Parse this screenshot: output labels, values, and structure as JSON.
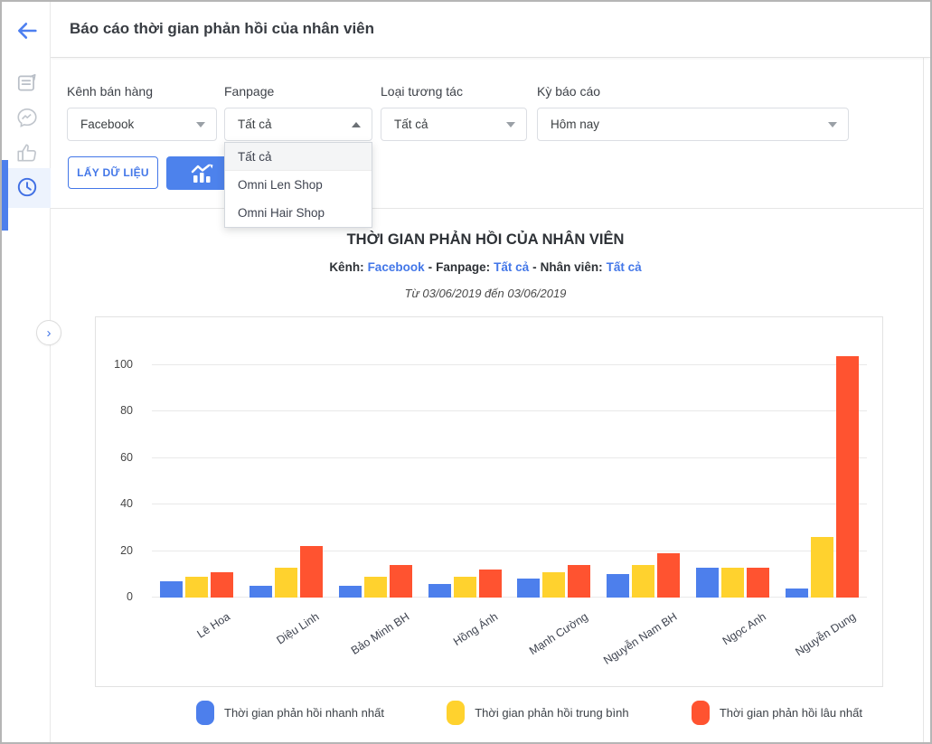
{
  "header": {
    "title": "Báo cáo thời gian phản hồi của nhân viên"
  },
  "sidebar": {
    "items": [
      {
        "id": "notes",
        "icon": "note-icon",
        "active": false
      },
      {
        "id": "messenger",
        "icon": "messenger-icon",
        "active": false
      },
      {
        "id": "reactions",
        "icon": "thumbs-up-icon",
        "active": false
      },
      {
        "id": "response-time",
        "icon": "clock-icon",
        "active": true
      }
    ]
  },
  "filters": {
    "channel": {
      "label": "Kênh bán hàng",
      "value": "Facebook"
    },
    "fanpage": {
      "label": "Fanpage",
      "value": "Tất cả",
      "open": true,
      "options": [
        "Tất cả",
        "Omni Len Shop",
        "Omni Hair Shop"
      ],
      "highlighted_option": "Tất cả"
    },
    "interaction": {
      "label": "Loại tương tác",
      "value": "Tất cả"
    },
    "period": {
      "label": "Kỳ báo cáo",
      "value": "Hôm nay"
    },
    "get_data_button": "LẤY DỮ LIỆU"
  },
  "report": {
    "title": "THỜI GIAN PHẢN HỒI CỦA NHÂN VIÊN",
    "subtitle": {
      "channel_label": "Kênh:",
      "channel_value": "Facebook",
      "sep1": "-",
      "fanpage_label": "Fanpage:",
      "fanpage_value": "Tất cả",
      "sep2": "-",
      "staff_label": "Nhân viên:",
      "staff_value": "Tất cả"
    },
    "date_range": "Từ 03/06/2019 đến 03/06/2019"
  },
  "chart_data": {
    "type": "bar",
    "categories": [
      "Lê Hoa",
      "Diệu Linh",
      "Bảo Minh BH",
      "Hồng Ánh",
      "Mạnh Cường",
      "Nguyễn Nam BH",
      "Ngọc Anh",
      "Nguyễn Dung"
    ],
    "series": [
      {
        "name": "Thời gian phản hồi nhanh nhất",
        "color": "#4D7FEC",
        "values": [
          7,
          5,
          5,
          6,
          8,
          10,
          13,
          4
        ]
      },
      {
        "name": "Thời gian phản hồi trung bình",
        "color": "#FFD22E",
        "values": [
          9,
          13,
          9,
          9,
          11,
          14,
          13,
          26
        ]
      },
      {
        "name": "Thời gian phản hồi lâu nhất",
        "color": "#FF5330",
        "values": [
          11,
          22,
          14,
          12,
          14,
          19,
          13,
          104
        ]
      }
    ],
    "title": "THỜI GIAN PHẢN HỒI CỦA NHÂN VIÊN",
    "xlabel": "",
    "ylabel": "",
    "yticks": [
      0,
      20,
      40,
      60,
      80,
      100
    ],
    "ylim": [
      0,
      108
    ],
    "grid": true,
    "legend_position": "bottom"
  },
  "colors": {
    "accent": "#4377E8",
    "primary_button": "#4D82EC"
  }
}
